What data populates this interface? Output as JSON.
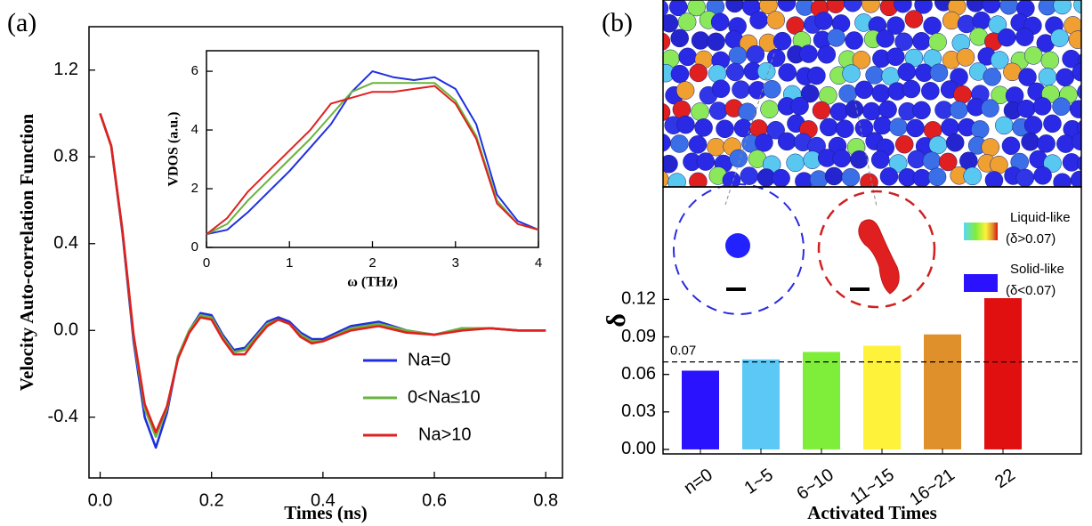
{
  "chart_data": [
    {
      "type": "line",
      "panel_label": "(a)",
      "x_label": "Times (ns)",
      "y_label": "Velocity Auto-correlation Function",
      "x": [
        0,
        0.02,
        0.04,
        0.06,
        0.08,
        0.1,
        0.12,
        0.14,
        0.16,
        0.18,
        0.2,
        0.22,
        0.24,
        0.26,
        0.28,
        0.3,
        0.32,
        0.34,
        0.36,
        0.38,
        0.4,
        0.45,
        0.5,
        0.55,
        0.6,
        0.65,
        0.7,
        0.75,
        0.8
      ],
      "series": [
        {
          "name": "Na=0",
          "color": "#1f2fe0",
          "values": [
            1.0,
            0.85,
            0.45,
            -0.05,
            -0.4,
            -0.54,
            -0.38,
            -0.12,
            0.0,
            0.08,
            0.07,
            -0.02,
            -0.09,
            -0.08,
            -0.02,
            0.04,
            0.06,
            0.04,
            -0.01,
            -0.04,
            -0.04,
            0.02,
            0.04,
            0.0,
            -0.02,
            0.01,
            0.01,
            0.0,
            0.0
          ]
        },
        {
          "name": "0<Na≤10",
          "color": "#6ab33c",
          "values": [
            1.0,
            0.85,
            0.46,
            -0.03,
            -0.36,
            -0.49,
            -0.36,
            -0.12,
            0.0,
            0.07,
            0.06,
            -0.03,
            -0.1,
            -0.09,
            -0.03,
            0.03,
            0.05,
            0.03,
            -0.02,
            -0.05,
            -0.05,
            0.01,
            0.03,
            0.0,
            -0.02,
            0.01,
            0.01,
            0.0,
            0.0
          ]
        },
        {
          "name": "Na>10",
          "color": "#e0201e",
          "values": [
            1.0,
            0.85,
            0.46,
            -0.02,
            -0.34,
            -0.47,
            -0.35,
            -0.13,
            -0.01,
            0.06,
            0.05,
            -0.04,
            -0.11,
            -0.11,
            -0.04,
            0.02,
            0.05,
            0.03,
            -0.03,
            -0.06,
            -0.05,
            0.0,
            0.02,
            -0.01,
            -0.02,
            0.0,
            0.01,
            0.0,
            0.0
          ]
        }
      ],
      "xlim": [
        -0.02,
        0.83
      ],
      "ylim": [
        -0.68,
        1.4
      ],
      "xticks": [
        {
          "value": 0,
          "label": "0.0"
        },
        0.2,
        0.4,
        0.6,
        0.8
      ],
      "yticks": [
        -0.4,
        {
          "value": 0,
          "label": "0.0"
        },
        0.4,
        0.8,
        1.2
      ],
      "grid": false,
      "legend": "lower right"
    },
    {
      "type": "line",
      "x_label": "ω (THz)",
      "y_label": "VDOS (a.u.)",
      "x": [
        0,
        0.25,
        0.5,
        0.75,
        1,
        1.25,
        1.5,
        1.75,
        2,
        2.25,
        2.5,
        2.75,
        3,
        3.25,
        3.5,
        3.75,
        4
      ],
      "series": [
        {
          "name": "Na=0",
          "color": "#1f2fe0",
          "values": [
            0.45,
            0.6,
            1.2,
            1.9,
            2.6,
            3.4,
            4.2,
            5.3,
            6.0,
            5.8,
            5.7,
            5.8,
            5.4,
            4.2,
            1.8,
            0.9,
            0.6
          ]
        },
        {
          "name": "0<Na≤10",
          "color": "#6ab33c",
          "values": [
            0.45,
            0.8,
            1.6,
            2.3,
            3.0,
            3.7,
            4.5,
            5.3,
            5.6,
            5.6,
            5.6,
            5.6,
            5.0,
            3.8,
            1.6,
            0.8,
            0.6
          ]
        },
        {
          "name": "Na>10",
          "color": "#e0201e",
          "values": [
            0.45,
            1.0,
            1.9,
            2.6,
            3.3,
            4.0,
            4.9,
            5.1,
            5.3,
            5.3,
            5.4,
            5.5,
            4.9,
            3.7,
            1.5,
            0.8,
            0.6
          ]
        }
      ],
      "xlim": [
        0,
        4
      ],
      "ylim": [
        0,
        6.7
      ],
      "xticks": [
        0,
        1,
        2,
        3,
        4
      ],
      "yticks": [
        0,
        2,
        4,
        6
      ],
      "grid": false
    },
    {
      "type": "bar",
      "panel_label": "(b)",
      "x_label": "Activated Times",
      "y_label": "δ",
      "categories": [
        "n=0",
        "1~5",
        "6~10",
        "11~15",
        "16~21",
        "22"
      ],
      "values": [
        0.063,
        0.072,
        0.078,
        0.083,
        0.092,
        0.121
      ],
      "colors": [
        "#2a12ff",
        "#5bc8f5",
        "#7fee3a",
        "#fff23a",
        "#e0902a",
        "#e01010"
      ],
      "threshold": 0.07,
      "ylim": [
        -0.0036,
        0.21
      ],
      "yticks": [
        {
          "value": 0,
          "label": "0.00"
        },
        0.03,
        0.06,
        0.09,
        0.12
      ],
      "grid": false,
      "legend": [
        {
          "label": "Liquid-like",
          "condition": "(δ>0.07)"
        },
        {
          "label": "Solid-like",
          "condition": "(δ<0.07)"
        }
      ]
    }
  ]
}
